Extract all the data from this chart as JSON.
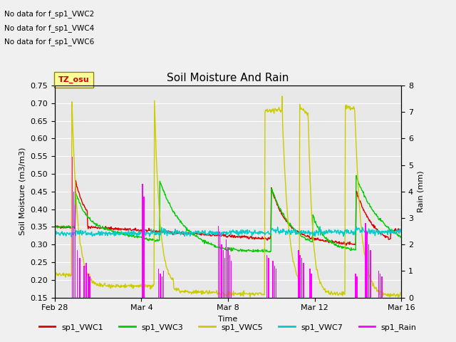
{
  "title": "Soil Moisture And Rain",
  "xlabel": "Time",
  "ylabel_left": "Soil Moisture (m3/m3)",
  "ylabel_right": "Rain (mm)",
  "ylim_left": [
    0.15,
    0.75
  ],
  "ylim_right": [
    0.0,
    8.0
  ],
  "yticks_left": [
    0.15,
    0.2,
    0.25,
    0.3,
    0.35,
    0.4,
    0.45,
    0.5,
    0.55,
    0.6,
    0.65,
    0.7,
    0.75
  ],
  "yticks_right": [
    0.0,
    1.0,
    2.0,
    3.0,
    4.0,
    5.0,
    6.0,
    7.0,
    8.0
  ],
  "xtick_positions": [
    0,
    4,
    8,
    12,
    16
  ],
  "xtick_labels": [
    "Feb 28",
    "Mar 4",
    "Mar 8",
    "Mar 12",
    "Mar 16"
  ],
  "no_data_texts": [
    "No data for f_sp1_VWC2",
    "No data for f_sp1_VWC4",
    "No data for f_sp1_VWC6"
  ],
  "watermark_text": "TZ_osu",
  "colors": {
    "VWC1": "#dd0000",
    "VWC3": "#00cc00",
    "VWC5": "#cccc00",
    "VWC7": "#00cccc",
    "Rain": "#ff00ff"
  },
  "bg_color": "#e8e8e8",
  "fig_bg": "#f0f0f0",
  "grid_color": "#ffffff"
}
